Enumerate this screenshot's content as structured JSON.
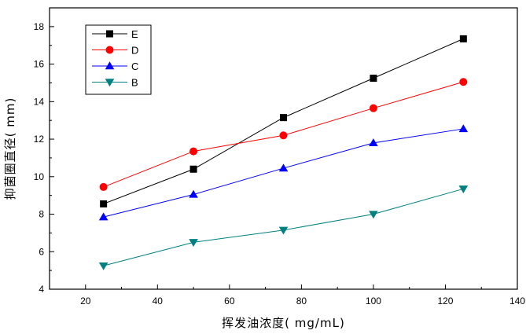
{
  "chart_data": {
    "type": "line",
    "title": "",
    "xlabel": "挥发油浓度( mg/mL)",
    "ylabel": "抑菌圈直径( mm)",
    "xlim": [
      10,
      140
    ],
    "ylim": [
      4,
      19
    ],
    "xticks": [
      20,
      40,
      60,
      80,
      100,
      120,
      140
    ],
    "yticks": [
      4,
      6,
      8,
      10,
      12,
      14,
      16,
      18
    ],
    "grid": false,
    "legend_position": "top-left",
    "x": [
      25,
      50,
      75,
      100,
      125
    ],
    "series": [
      {
        "name": "E",
        "values": [
          8.55,
          10.4,
          13.15,
          15.25,
          17.35
        ],
        "color": "#000000",
        "marker": "square"
      },
      {
        "name": "D",
        "values": [
          9.45,
          11.35,
          12.2,
          13.65,
          15.05
        ],
        "color": "#ff0000",
        "marker": "circle"
      },
      {
        "name": "C",
        "values": [
          7.85,
          9.05,
          10.45,
          11.8,
          12.55
        ],
        "color": "#0000ff",
        "marker": "triangle-up"
      },
      {
        "name": "B",
        "values": [
          5.25,
          6.5,
          7.15,
          8.0,
          9.35
        ],
        "color": "#008080",
        "marker": "triangle-down"
      }
    ]
  }
}
